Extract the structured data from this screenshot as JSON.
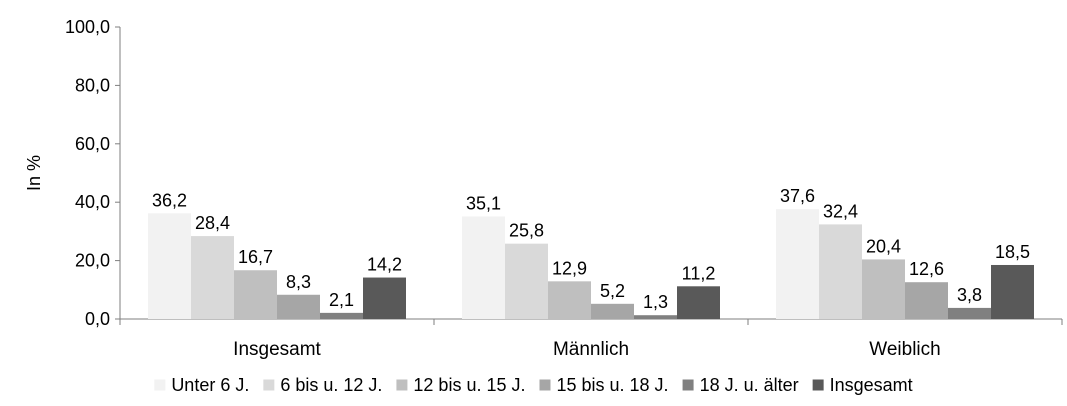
{
  "chart_data": {
    "type": "bar",
    "ylabel": "In %",
    "ylim": [
      0,
      100
    ],
    "y_ticks": [
      "0,0",
      "20,0",
      "40,0",
      "60,0",
      "80,0",
      "100,0"
    ],
    "y_tick_values": [
      0,
      20,
      40,
      60,
      80,
      100
    ],
    "categories": [
      "Insgesamt",
      "Männlich",
      "Weiblich"
    ],
    "legend_position": "bottom",
    "grid": false,
    "series": [
      {
        "name": "Unter 6 J.",
        "color": "#f2f2f2",
        "values": [
          36.2,
          35.1,
          37.6
        ],
        "labels": [
          "36,2",
          "35,1",
          "37,6"
        ]
      },
      {
        "name": "6 bis u. 12 J.",
        "color": "#d9d9d9",
        "values": [
          28.4,
          25.8,
          32.4
        ],
        "labels": [
          "28,4",
          "25,8",
          "32,4"
        ]
      },
      {
        "name": "12 bis u. 15 J.",
        "color": "#bfbfbf",
        "values": [
          16.7,
          12.9,
          20.4
        ],
        "labels": [
          "16,7",
          "12,9",
          "20,4"
        ]
      },
      {
        "name": "15 bis u. 18 J.",
        "color": "#a6a6a6",
        "values": [
          8.3,
          5.2,
          12.6
        ],
        "labels": [
          "8,3",
          "5,2",
          "12,6"
        ]
      },
      {
        "name": "18 J. u. älter",
        "color": "#808080",
        "values": [
          2.1,
          1.3,
          3.8
        ],
        "labels": [
          "2,1",
          "1,3",
          "3,8"
        ]
      },
      {
        "name": "Insgesamt",
        "color": "#595959",
        "values": [
          14.2,
          11.2,
          18.5
        ],
        "labels": [
          "14,2",
          "11,2",
          "18,5"
        ]
      }
    ]
  }
}
